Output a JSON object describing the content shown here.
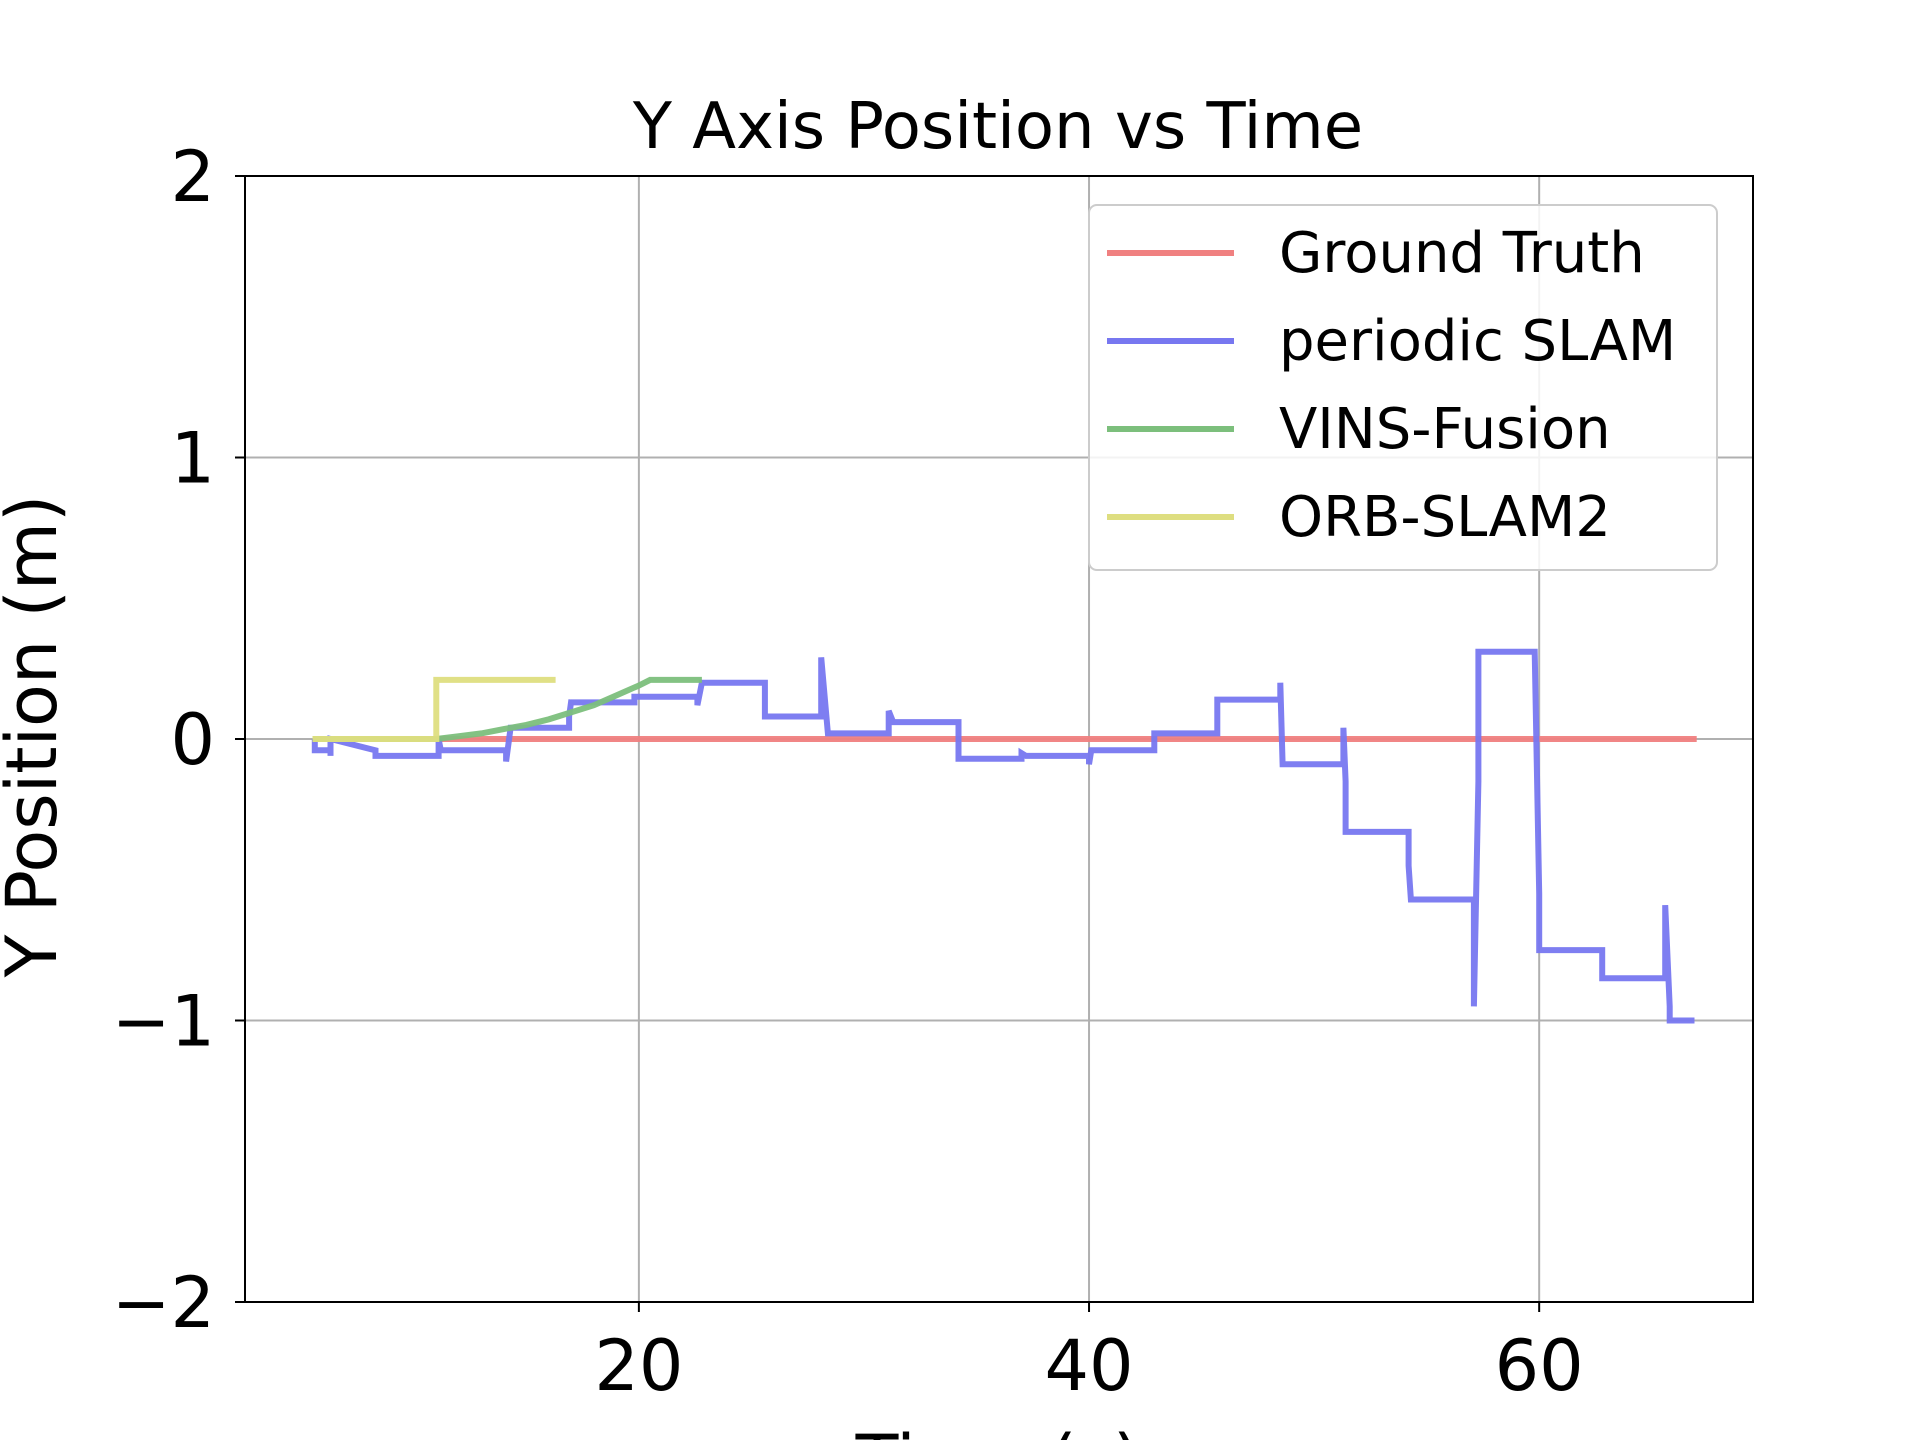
{
  "chart_data": {
    "type": "line",
    "title": "Y Axis Position vs Time",
    "xlabel": "Time (s)",
    "ylabel": "Y Position (m)",
    "xlim": [
      2.5,
      69.5
    ],
    "ylim": [
      -2,
      2
    ],
    "x_ticks": [
      20,
      40,
      60
    ],
    "y_ticks": [
      -2,
      -1,
      0,
      1,
      2
    ],
    "x_tick_labels": [
      "20",
      "40",
      "60"
    ],
    "y_tick_labels": [
      "−2",
      "−1",
      "0",
      "1",
      "2"
    ],
    "grid": true,
    "legend_position": "upper right",
    "series": [
      {
        "name": "Ground Truth",
        "color": "#f08080",
        "x": [
          5.5,
          67.0
        ],
        "y": [
          0.0,
          0.0
        ]
      },
      {
        "name": "periodic SLAM",
        "color": "#7777f0",
        "x": [
          5.6,
          5.6,
          6.3,
          6.3,
          6.3,
          8.3,
          8.3,
          11.1,
          11.1,
          11.2,
          11.2,
          14.1,
          14.1,
          14.3,
          14.3,
          16.9,
          16.9,
          17.0,
          17.0,
          19.8,
          19.8,
          22.6,
          22.6,
          22.8,
          22.8,
          25.6,
          25.6,
          28.1,
          28.1,
          28.4,
          28.4,
          31.1,
          31.1,
          31.3,
          31.3,
          34.2,
          34.2,
          37.0,
          37.0,
          37.2,
          37.2,
          40.0,
          40.0,
          40.1,
          40.1,
          42.9,
          42.9,
          43.0,
          43.0,
          45.7,
          45.7,
          48.5,
          48.5,
          48.6,
          48.6,
          51.3,
          51.3,
          51.4,
          51.4,
          51.4,
          54.2,
          54.2,
          54.3,
          54.3,
          57.1,
          57.1,
          57.3,
          57.3,
          59.8,
          59.8,
          60.0,
          60.0,
          62.8,
          62.8,
          65.6,
          65.6,
          65.8,
          65.8,
          66.9
        ],
        "y": [
          0.0,
          -0.04,
          -0.04,
          -0.06,
          0.0,
          -0.04,
          -0.06,
          -0.06,
          0.0,
          -0.04,
          -0.04,
          -0.04,
          -0.08,
          0.04,
          0.04,
          0.04,
          0.08,
          0.14,
          0.13,
          0.13,
          0.15,
          0.15,
          0.12,
          0.2,
          0.2,
          0.2,
          0.08,
          0.08,
          0.29,
          0.02,
          0.02,
          0.02,
          0.1,
          0.06,
          0.06,
          0.06,
          -0.07,
          -0.07,
          -0.05,
          -0.06,
          -0.06,
          -0.06,
          -0.09,
          -0.04,
          -0.04,
          -0.04,
          0.02,
          0.02,
          0.02,
          0.02,
          0.14,
          0.14,
          0.2,
          -0.09,
          -0.09,
          -0.09,
          0.04,
          -0.15,
          -0.33,
          -0.33,
          -0.33,
          -0.45,
          -0.57,
          -0.57,
          -0.57,
          -0.95,
          -0.15,
          0.31,
          0.31,
          0.31,
          -0.55,
          -0.75,
          -0.75,
          -0.85,
          -0.85,
          -0.59,
          -0.95,
          -1.0,
          -1.0
        ]
      },
      {
        "name": "VINS-Fusion",
        "color": "#7cbf7c",
        "x": [
          5.5,
          6.5,
          8.0,
          10.0,
          11.0,
          12.0,
          13.0,
          14.0,
          15.0,
          16.0,
          17.0,
          18.0,
          19.0,
          20.0,
          20.5,
          22.0,
          22.8
        ],
        "y": [
          0.0,
          0.0,
          0.0,
          0.0,
          0.0,
          0.01,
          0.02,
          0.035,
          0.05,
          0.07,
          0.095,
          0.12,
          0.155,
          0.19,
          0.21,
          0.21,
          0.21
        ]
      },
      {
        "name": "ORB-SLAM2",
        "color": "#dede80",
        "x": [
          5.5,
          6.5,
          8.0,
          10.5,
          11.0,
          11.0,
          13.0,
          16.3
        ],
        "y": [
          0.0,
          0.0,
          0.0,
          0.0,
          0.0,
          0.21,
          0.21,
          0.21
        ]
      }
    ]
  }
}
